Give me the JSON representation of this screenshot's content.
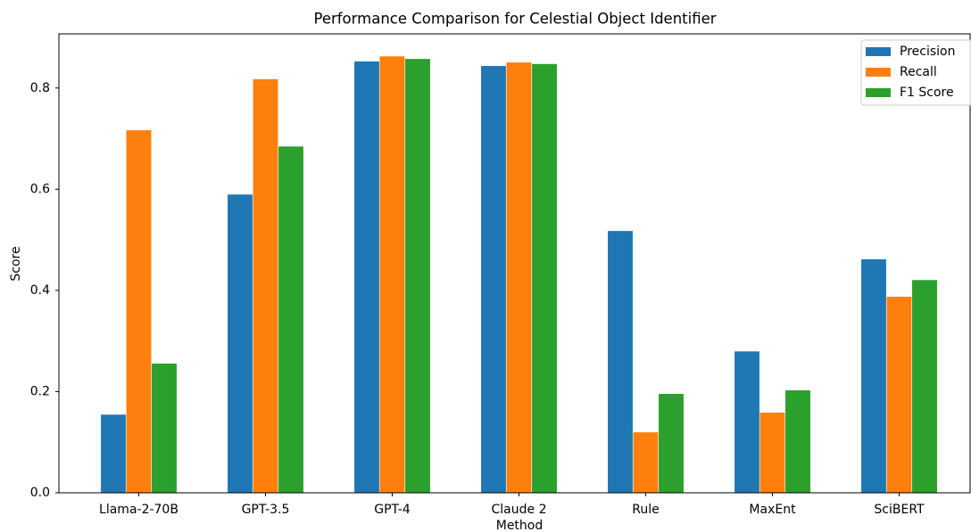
{
  "chart_data": {
    "type": "bar",
    "title": "Performance Comparison for Celestial Object Identifier",
    "x_label": "Method",
    "y_label": "Score",
    "categories": [
      "Llama-2-70B",
      "GPT-3.5",
      "GPT-4",
      "Claude 2",
      "Rule",
      "MaxEnt",
      "SciBERT"
    ],
    "series": [
      {
        "name": "Precision",
        "color": "#1f77b4",
        "values": [
          0.155,
          0.59,
          0.853,
          0.844,
          0.518,
          0.28,
          0.462
        ]
      },
      {
        "name": "Recall",
        "color": "#ff7f0e",
        "values": [
          0.717,
          0.818,
          0.863,
          0.851,
          0.12,
          0.159,
          0.388
        ]
      },
      {
        "name": "F1 Score",
        "color": "#2ca02c",
        "values": [
          0.256,
          0.685,
          0.858,
          0.848,
          0.196,
          0.203,
          0.421
        ]
      }
    ],
    "ylim": [
      0,
      0.907
    ],
    "yticks": [
      {
        "value": 0,
        "label": "0.0"
      },
      0.2,
      0.4,
      0.6,
      0.8
    ],
    "legend": "upper right",
    "grid": false
  }
}
